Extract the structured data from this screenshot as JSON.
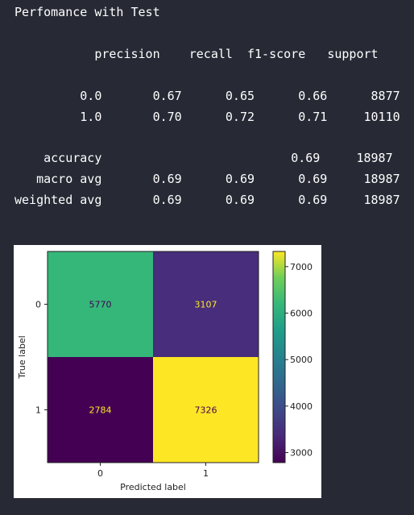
{
  "report": {
    "title": "Perfomance with Test",
    "header": {
      "precision": "precision",
      "recall": "recall",
      "f1": "f1-score",
      "support": "support"
    },
    "rows": [
      {
        "label": "0.0",
        "precision": "0.67",
        "recall": "0.65",
        "f1": "0.66",
        "support": "8877"
      },
      {
        "label": "1.0",
        "precision": "0.70",
        "recall": "0.72",
        "f1": "0.71",
        "support": "10110"
      }
    ],
    "summary": [
      {
        "label": "accuracy",
        "precision": "",
        "recall": "",
        "f1": "0.69",
        "support": "18987"
      },
      {
        "label": "macro avg",
        "precision": "0.69",
        "recall": "0.69",
        "f1": "0.69",
        "support": "18987"
      },
      {
        "label": "weighted avg",
        "precision": "0.69",
        "recall": "0.69",
        "f1": "0.69",
        "support": "18987"
      }
    ]
  },
  "chart_data": {
    "type": "heatmap",
    "xlabel": "Predicted label",
    "ylabel": "True label",
    "x_ticks": [
      "0",
      "1"
    ],
    "y_ticks": [
      "0",
      "1"
    ],
    "matrix": [
      [
        5770,
        3107
      ],
      [
        2784,
        7326
      ]
    ],
    "cell_colors": [
      [
        "#35b779",
        "#472d7b"
      ],
      [
        "#440154",
        "#fde725"
      ]
    ],
    "cell_text_colors": [
      [
        "#440154",
        "#fde725"
      ],
      [
        "#fde725",
        "#440154"
      ]
    ],
    "colorbar": {
      "ticks": [
        3000,
        4000,
        5000,
        6000,
        7000
      ],
      "vmin": 2784,
      "vmax": 7326,
      "colormap": "viridis"
    }
  }
}
